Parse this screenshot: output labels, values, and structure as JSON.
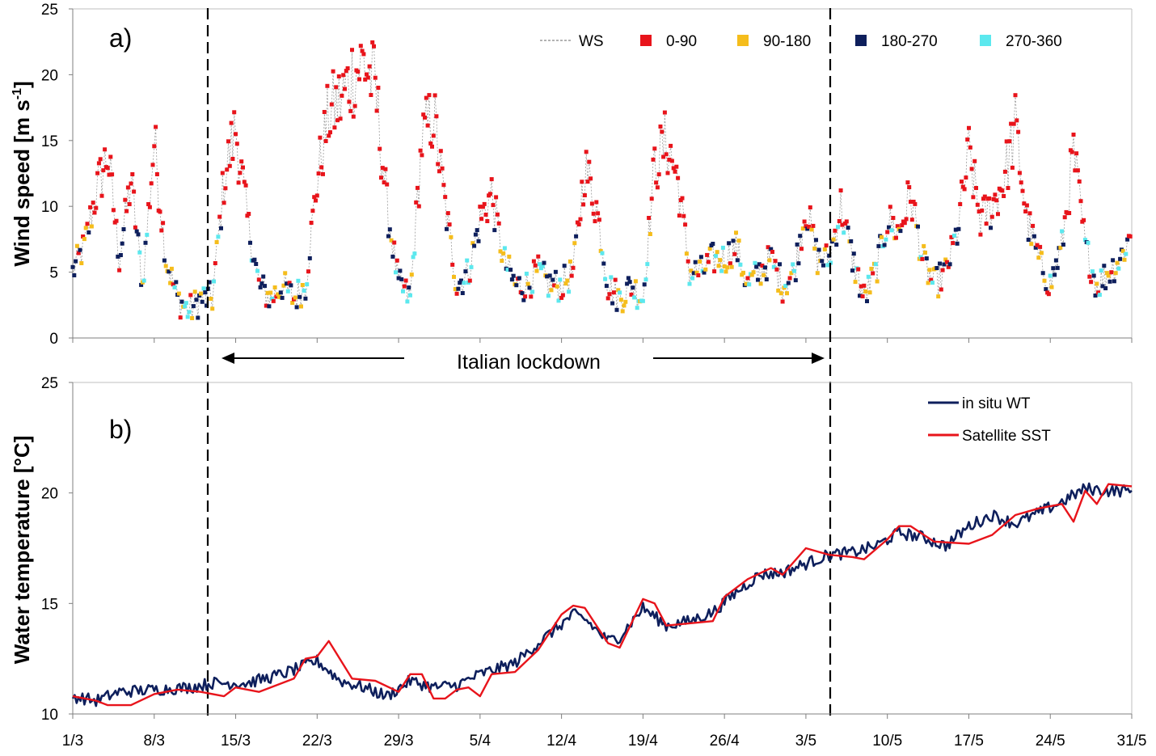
{
  "figure": {
    "annotation": "Italian lockdown",
    "lockdown_start": "12/3",
    "lockdown_end": "4/5"
  },
  "chart_data": [
    {
      "type": "line",
      "panel_label": "a)",
      "ylabel": "Wind speed [m s-1]",
      "ylabel_main": "Wind speed [m s",
      "ylabel_sup": "-1",
      "ylabel_tail": "]",
      "ylim": [
        0,
        25
      ],
      "yticks": [
        0,
        5,
        10,
        15,
        20,
        25
      ],
      "xlim": [
        "1/3",
        "31/5"
      ],
      "grid": false,
      "legend_position": "top-right",
      "legend": [
        {
          "label": "WS",
          "color": "#9a9a9a",
          "style": "dashed-line"
        },
        {
          "label": "0-90",
          "color": "#e8141b",
          "style": "marker"
        },
        {
          "label": "90-180",
          "color": "#f5bd1c",
          "style": "marker"
        },
        {
          "label": "180-270",
          "color": "#0e1f5c",
          "style": "marker"
        },
        {
          "label": "270-360",
          "color": "#5ce8ee",
          "style": "marker"
        }
      ],
      "series_WS_keypoints": [
        [
          "1/3",
          5
        ],
        [
          "2/3",
          7
        ],
        [
          "3/3",
          11
        ],
        [
          "4/3",
          14
        ],
        [
          "5/3",
          6
        ],
        [
          "6/3",
          12
        ],
        [
          "7/3",
          4
        ],
        [
          "8/3",
          15
        ],
        [
          "9/3",
          6
        ],
        [
          "10/3",
          3
        ],
        [
          "11/3",
          2
        ],
        [
          "12/3",
          3
        ],
        [
          "13/3",
          3
        ],
        [
          "14/3",
          12
        ],
        [
          "15/3",
          16
        ],
        [
          "16/3",
          9
        ],
        [
          "17/3",
          4
        ],
        [
          "18/3",
          3
        ],
        [
          "19/3",
          4
        ],
        [
          "20/3",
          3
        ],
        [
          "21/3",
          4
        ],
        [
          "22/3",
          12
        ],
        [
          "23/3",
          17
        ],
        [
          "24/3",
          18
        ],
        [
          "25/3",
          20
        ],
        [
          "26/3",
          21
        ],
        [
          "27/3",
          19
        ],
        [
          "28/3",
          10
        ],
        [
          "29/3",
          4
        ],
        [
          "30/3",
          3
        ],
        [
          "31/3",
          15
        ],
        [
          "1/4",
          17
        ],
        [
          "2/4",
          10
        ],
        [
          "3/4",
          4
        ],
        [
          "4/4",
          5
        ],
        [
          "5/4",
          9
        ],
        [
          "6/4",
          11
        ],
        [
          "7/4",
          6
        ],
        [
          "8/4",
          4
        ],
        [
          "9/4",
          4
        ],
        [
          "10/4",
          5
        ],
        [
          "11/4",
          4
        ],
        [
          "12/4",
          4
        ],
        [
          "13/4",
          5
        ],
        [
          "14/4",
          13
        ],
        [
          "15/4",
          10
        ],
        [
          "16/4",
          4
        ],
        [
          "17/4",
          3
        ],
        [
          "18/4",
          4
        ],
        [
          "19/4",
          3
        ],
        [
          "20/4",
          13
        ],
        [
          "21/4",
          15
        ],
        [
          "22/4",
          12
        ],
        [
          "23/4",
          5
        ],
        [
          "24/4",
          5
        ],
        [
          "25/4",
          6
        ],
        [
          "26/4",
          6
        ],
        [
          "27/4",
          7
        ],
        [
          "28/4",
          4
        ],
        [
          "29/4",
          5
        ],
        [
          "30/4",
          6
        ],
        [
          "1/5",
          4
        ],
        [
          "2/5",
          5
        ],
        [
          "3/5",
          10
        ],
        [
          "4/5",
          6
        ],
        [
          "5/5",
          6
        ],
        [
          "6/5",
          10
        ],
        [
          "7/5",
          6
        ],
        [
          "8/5",
          3
        ],
        [
          "9/5",
          5
        ],
        [
          "10/5",
          9
        ],
        [
          "11/5",
          8
        ],
        [
          "12/5",
          11
        ],
        [
          "13/5",
          6
        ],
        [
          "14/5",
          4
        ],
        [
          "15/5",
          5
        ],
        [
          "16/5",
          8
        ],
        [
          "17/5",
          14
        ],
        [
          "18/5",
          9
        ],
        [
          "19/5",
          10
        ],
        [
          "20/5",
          12
        ],
        [
          "21/5",
          16
        ],
        [
          "22/5",
          9
        ],
        [
          "23/5",
          6
        ],
        [
          "24/5",
          4
        ],
        [
          "25/5",
          7
        ],
        [
          "26/5",
          14
        ],
        [
          "27/5",
          7
        ],
        [
          "28/5",
          4
        ],
        [
          "29/5",
          5
        ],
        [
          "30/5",
          6
        ],
        [
          "31/5",
          8
        ]
      ]
    },
    {
      "type": "line",
      "panel_label": "b)",
      "ylabel": "Water temperature [°C]",
      "ylim": [
        10,
        25
      ],
      "yticks": [
        10,
        15,
        20,
        25
      ],
      "xlim": [
        "1/3",
        "31/5"
      ],
      "xticks": [
        "1/3",
        "8/3",
        "15/3",
        "22/3",
        "29/3",
        "5/4",
        "12/4",
        "19/4",
        "26/4",
        "3/5",
        "10/5",
        "17/5",
        "24/5",
        "31/5"
      ],
      "grid": false,
      "legend_position": "top-right",
      "series": [
        {
          "name": "in situ WT",
          "color": "#0e1f5c",
          "points": [
            [
              "1/3",
              10.8
            ],
            [
              "3/3",
              10.6
            ],
            [
              "5/3",
              11.0
            ],
            [
              "8/3",
              11.1
            ],
            [
              "11/3",
              11.2
            ],
            [
              "13/3",
              11.4
            ],
            [
              "16/3",
              11.4
            ],
            [
              "19/3",
              11.8
            ],
            [
              "22/3",
              12.4
            ],
            [
              "24/3",
              11.5
            ],
            [
              "26/3",
              11.2
            ],
            [
              "28/3",
              10.8
            ],
            [
              "30/3",
              11.5
            ],
            [
              "1/4",
              11.2
            ],
            [
              "3/4",
              11.3
            ],
            [
              "5/4",
              11.8
            ],
            [
              "8/4",
              12.3
            ],
            [
              "10/4",
              13.2
            ],
            [
              "13/4",
              14.5
            ],
            [
              "14/4",
              14.3
            ],
            [
              "16/4",
              13.3
            ],
            [
              "17/4",
              13.5
            ],
            [
              "19/4",
              14.8
            ],
            [
              "21/4",
              14.0
            ],
            [
              "23/4",
              14.2
            ],
            [
              "25/4",
              14.6
            ],
            [
              "27/4",
              15.5
            ],
            [
              "29/4",
              16.3
            ],
            [
              "1/5",
              16.4
            ],
            [
              "3/5",
              16.8
            ],
            [
              "5/5",
              17.2
            ],
            [
              "7/5",
              17.3
            ],
            [
              "9/5",
              17.6
            ],
            [
              "11/5",
              18.2
            ],
            [
              "13/5",
              18.0
            ],
            [
              "15/5",
              17.6
            ],
            [
              "17/5",
              18.5
            ],
            [
              "19/5",
              19.0
            ],
            [
              "21/5",
              18.6
            ],
            [
              "23/5",
              19.1
            ],
            [
              "25/5",
              19.6
            ],
            [
              "27/5",
              20.2
            ],
            [
              "29/5",
              20.1
            ],
            [
              "31/5",
              20.1
            ]
          ]
        },
        {
          "name": "Satellite SST",
          "color": "#e8141b",
          "points": [
            [
              "1/3",
              10.8
            ],
            [
              "3/3",
              10.6
            ],
            [
              "4/3",
              10.4
            ],
            [
              "6/3",
              10.4
            ],
            [
              "8/3",
              10.9
            ],
            [
              "10/3",
              11.1
            ],
            [
              "12/3",
              11.0
            ],
            [
              "14/3",
              10.8
            ],
            [
              "15/3",
              11.2
            ],
            [
              "17/3",
              11.0
            ],
            [
              "20/3",
              11.6
            ],
            [
              "21/3",
              12.5
            ],
            [
              "22/3",
              12.6
            ],
            [
              "23/3",
              13.3
            ],
            [
              "25/3",
              11.6
            ],
            [
              "27/3",
              11.5
            ],
            [
              "29/3",
              11.0
            ],
            [
              "30/3",
              11.8
            ],
            [
              "31/3",
              11.8
            ],
            [
              "1/4",
              10.7
            ],
            [
              "2/4",
              10.7
            ],
            [
              "3/4",
              11.1
            ],
            [
              "4/4",
              11.2
            ],
            [
              "5/4",
              10.8
            ],
            [
              "6/4",
              11.8
            ],
            [
              "8/4",
              11.9
            ],
            [
              "10/4",
              12.9
            ],
            [
              "12/4",
              14.5
            ],
            [
              "13/4",
              14.9
            ],
            [
              "14/4",
              14.8
            ],
            [
              "16/4",
              13.2
            ],
            [
              "17/4",
              13.0
            ],
            [
              "19/4",
              15.2
            ],
            [
              "20/4",
              15.0
            ],
            [
              "21/4",
              14.0
            ],
            [
              "23/4",
              14.1
            ],
            [
              "25/4",
              14.2
            ],
            [
              "26/4",
              15.3
            ],
            [
              "28/4",
              16.1
            ],
            [
              "30/4",
              16.6
            ],
            [
              "1/5",
              16.3
            ],
            [
              "3/5",
              17.5
            ],
            [
              "5/5",
              17.2
            ],
            [
              "7/5",
              17.1
            ],
            [
              "8/5",
              17.0
            ],
            [
              "10/5",
              17.9
            ],
            [
              "11/5",
              18.5
            ],
            [
              "12/5",
              18.5
            ],
            [
              "14/5",
              17.8
            ],
            [
              "17/5",
              17.7
            ],
            [
              "19/5",
              18.1
            ],
            [
              "21/5",
              19.0
            ],
            [
              "23/5",
              19.3
            ],
            [
              "25/5",
              19.5
            ],
            [
              "26/5",
              18.7
            ],
            [
              "27/5",
              20.1
            ],
            [
              "28/5",
              19.5
            ],
            [
              "29/5",
              20.4
            ],
            [
              "31/5",
              20.3
            ]
          ]
        }
      ]
    }
  ]
}
